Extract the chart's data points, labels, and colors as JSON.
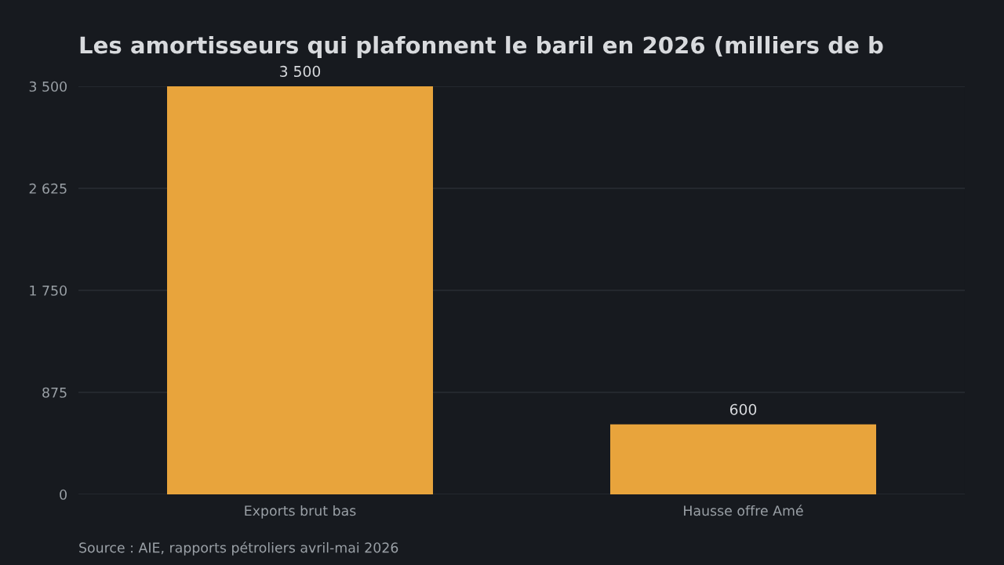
{
  "chart_data": {
    "type": "bar",
    "title": "Les amortisseurs qui plafonnent le baril en 2026 (milliers de b",
    "categories": [
      "Exports brut bas",
      "Hausse offre Amé"
    ],
    "values": [
      3500,
      600
    ],
    "color": "#e8a43c",
    "ylim": [
      0,
      3500
    ],
    "yticks": [
      0,
      {
        "value": 875,
        "label": "875"
      },
      {
        "value": 1750,
        "label": "1 750"
      },
      {
        "value": 2625,
        "label": "2 625"
      },
      {
        "value": 3500,
        "label": "3 500"
      }
    ],
    "value_labels": [
      "3 500",
      "600"
    ],
    "grid": "y",
    "legend": false,
    "annotations": [
      "Source : AIE, rapports pétroliers avril-mai 2026"
    ]
  }
}
